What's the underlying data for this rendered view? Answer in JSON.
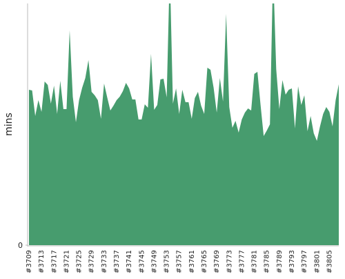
{
  "chart_data": {
    "type": "area",
    "ylabel": "mins",
    "color": "#479c6e",
    "categories": [
      "#3709",
      null,
      null,
      null,
      "#3713",
      null,
      null,
      null,
      "#3717",
      null,
      null,
      null,
      "#3721",
      null,
      null,
      null,
      "#3725",
      null,
      null,
      null,
      "#3729",
      null,
      null,
      null,
      "#3733",
      null,
      null,
      null,
      "#3737",
      null,
      null,
      null,
      "#3741",
      null,
      null,
      null,
      "#3745",
      null,
      null,
      null,
      "#3749",
      null,
      null,
      null,
      "#3753",
      null,
      null,
      null,
      "#3757",
      null,
      null,
      null,
      "#3761",
      null,
      null,
      null,
      "#3765",
      null,
      null,
      null,
      "#3769",
      null,
      null,
      null,
      "#3773",
      null,
      null,
      null,
      "#3777",
      null,
      null,
      null,
      "#3781",
      null,
      null,
      null,
      "#3785",
      null,
      null,
      null,
      "#3789",
      null,
      null,
      null,
      "#3793",
      null,
      null,
      null,
      "#3797",
      null,
      null,
      null,
      "#3801",
      null,
      null,
      null,
      "#3805",
      null,
      null,
      null
    ],
    "values": [
      225,
      224,
      187,
      210,
      193,
      237,
      232,
      205,
      231,
      190,
      238,
      197,
      197,
      311,
      215,
      178,
      210,
      228,
      242,
      268,
      222,
      217,
      210,
      183,
      234,
      214,
      195,
      202,
      210,
      215,
      223,
      235,
      227,
      211,
      211,
      182,
      182,
      204,
      199,
      277,
      196,
      203,
      240,
      241,
      214,
      400,
      205,
      227,
      190,
      225,
      207,
      207,
      183,
      213,
      222,
      202,
      190,
      257,
      254,
      228,
      192,
      242,
      208,
      335,
      200,
      170,
      180,
      163,
      182,
      192,
      198,
      195,
      248,
      251,
      203,
      158,
      166,
      175,
      400,
      255,
      197,
      239,
      218,
      225,
      227,
      169,
      230,
      203,
      217,
      165,
      187,
      162,
      151,
      172,
      190,
      200,
      193,
      172,
      210,
      233
    ],
    "ylim": [
      0,
      350
    ],
    "yticks": [
      0
    ]
  }
}
